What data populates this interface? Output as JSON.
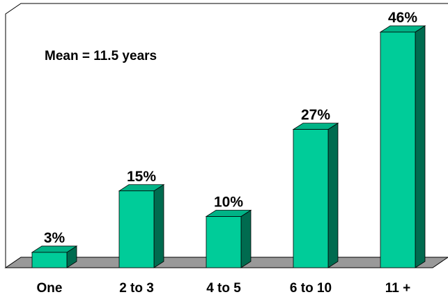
{
  "chart_data": {
    "type": "bar",
    "categories": [
      "One",
      "2 to 3",
      "4 to 5",
      "6 to 10",
      "11 +"
    ],
    "values": [
      3,
      15,
      10,
      27,
      46
    ],
    "data_labels": [
      "3%",
      "15%",
      "10%",
      "27%",
      "46%"
    ],
    "annotation": "Mean = 11.5 years",
    "title": "",
    "xlabel": "",
    "ylabel": "",
    "ylim": [
      0,
      46
    ],
    "grid": false,
    "legend": "none",
    "style": "3d-bars",
    "colors": {
      "bar_front": "#00cc99",
      "bar_top": "#00b386",
      "bar_side": "#006b4f",
      "floor": "#999999",
      "frame": "#000000"
    }
  }
}
